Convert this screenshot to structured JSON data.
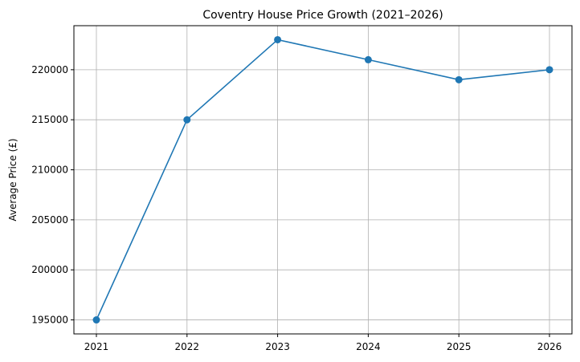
{
  "chart_data": {
    "type": "line",
    "title": "Coventry House Price Growth (2021–2026)",
    "xlabel": "",
    "ylabel": "Average Price (£)",
    "x": [
      "2021",
      "2022",
      "2023",
      "2024",
      "2025",
      "2026"
    ],
    "series": [
      {
        "values": [
          195000,
          215000,
          223000,
          221000,
          219000,
          220000
        ],
        "color": "#1f77b4"
      }
    ],
    "yticks": [
      "195000",
      "200000",
      "205000",
      "210000",
      "215000",
      "220000"
    ],
    "ylim": [
      193600,
      224400
    ],
    "grid": true,
    "marker": "circle"
  }
}
